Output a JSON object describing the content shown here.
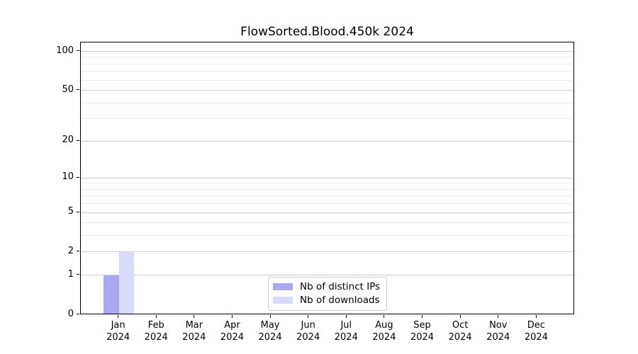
{
  "chart_data": {
    "type": "bar",
    "title": "FlowSorted.Blood.450k 2024",
    "categories": [
      "Jan",
      "Feb",
      "Mar",
      "Apr",
      "May",
      "Jun",
      "Jul",
      "Aug",
      "Sep",
      "Oct",
      "Nov",
      "Dec"
    ],
    "x_tick_sublabel": "2024",
    "series": [
      {
        "name": "Nb of distinct IPs",
        "color": "#a8a9ef",
        "values": [
          1,
          0,
          0,
          0,
          0,
          0,
          0,
          0,
          0,
          0,
          0,
          0
        ]
      },
      {
        "name": "Nb of downloads",
        "color": "#d8dbf7",
        "values": [
          2,
          0,
          0,
          0,
          0,
          0,
          0,
          0,
          0,
          0,
          0,
          0
        ]
      }
    ],
    "xlabel": "",
    "ylabel": "",
    "y_scale": "log1p",
    "ylim": [
      0,
      117
    ],
    "y_major_ticks": [
      0,
      1,
      2,
      5,
      10,
      20,
      50,
      100
    ],
    "y_minor_ticks": [
      3,
      4,
      6,
      7,
      8,
      9,
      30,
      40,
      60,
      70,
      80,
      90
    ],
    "grid": "horizontal",
    "legend_position": "lower center",
    "colors": {
      "major_grid": "#cccccc",
      "minor_grid": "#ececec",
      "axis": "#000000",
      "background": "#ffffff"
    }
  }
}
